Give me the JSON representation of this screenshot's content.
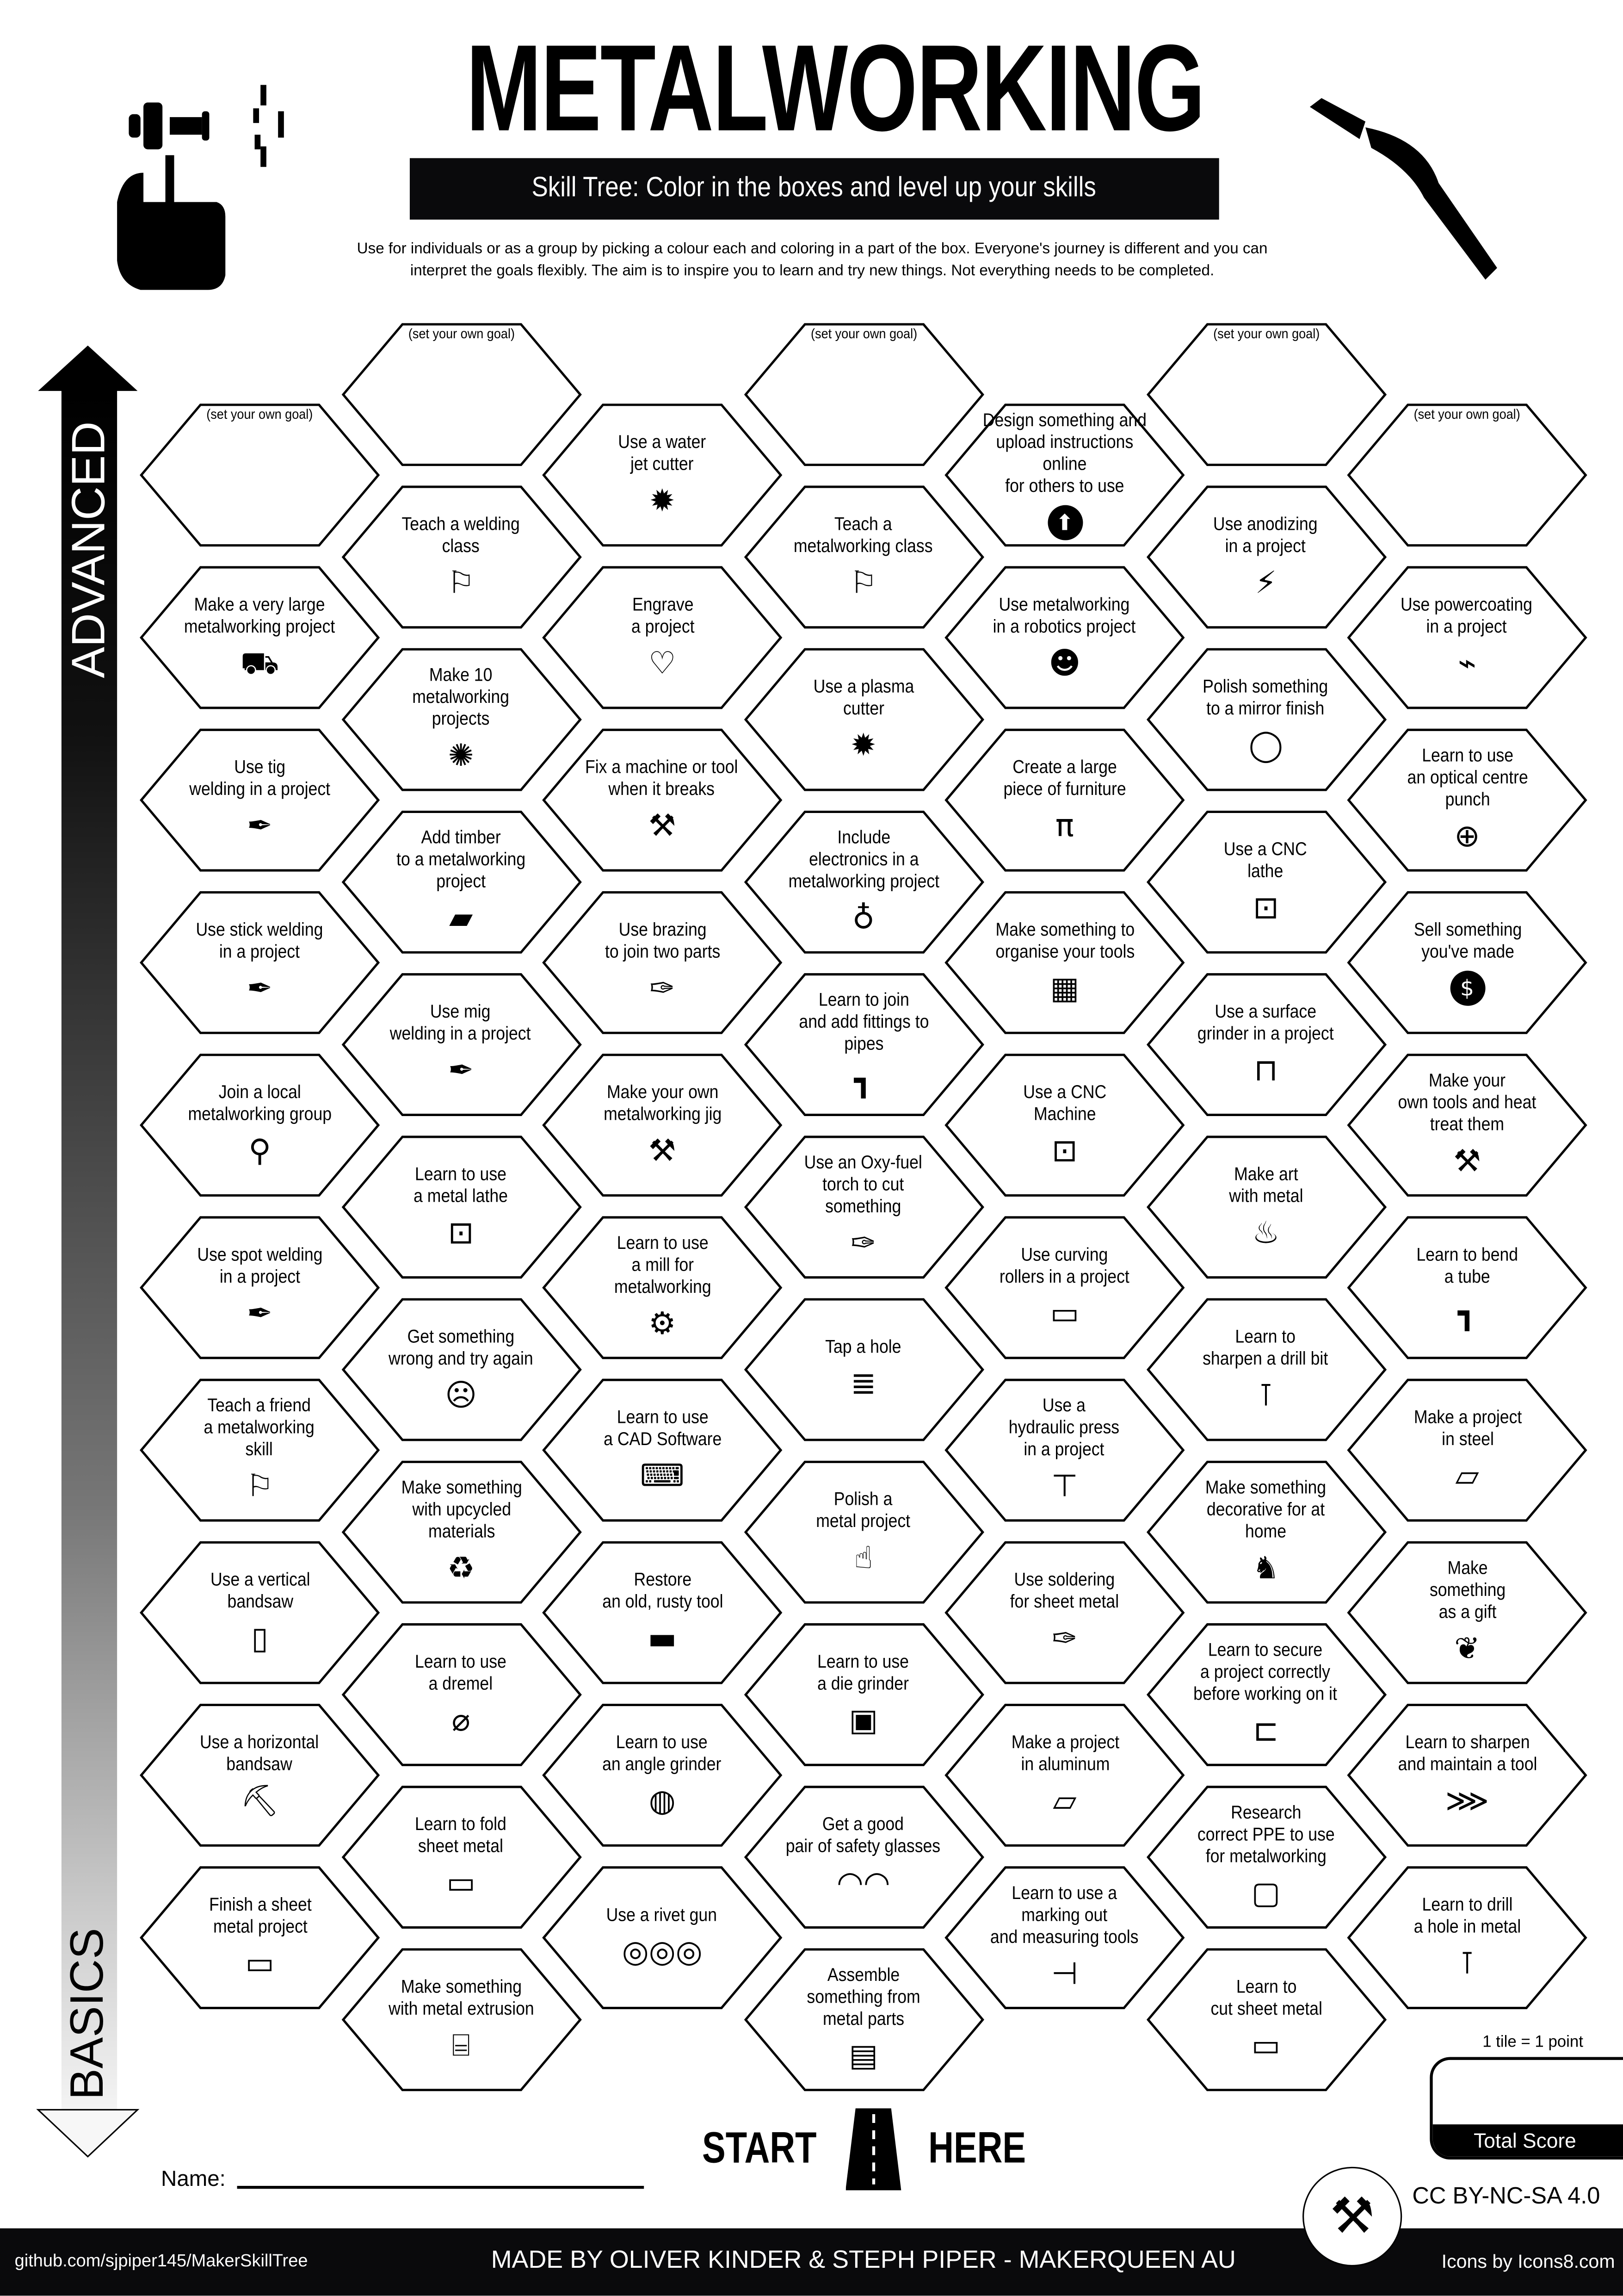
{
  "header": {
    "title": "METALWORKING",
    "subtitle": "Skill Tree:  Color in the boxes and level up your skills",
    "description_line1": "Use for individuals or as a group by picking a colour each and coloring in a part of the box.  Everyone's journey is different and you can",
    "description_line2": "interpret the goals flexibly.  The aim is to inspire you to learn and try new things. Not everything needs to be completed.",
    "left_icon": "torch-in-hand-icon",
    "right_icon": "welding-gun-icon"
  },
  "axis": {
    "top_label": "ADVANCED",
    "bottom_label": "BASICS"
  },
  "columns": [
    [
      {
        "label": "(set your own goal)",
        "goal": true
      },
      {
        "label": "Make a very large\nmetalworking project",
        "icon": "person-carrying-box"
      },
      {
        "label": "Use tig\nwelding in a project",
        "icon": "welding-torch"
      },
      {
        "label": "Use stick welding\nin a project",
        "icon": "welding-torch"
      },
      {
        "label": "Join a local\nmetalworking group",
        "icon": "map-pin"
      },
      {
        "label": "Use spot welding\nin a project",
        "icon": "welding-torch"
      },
      {
        "label": "Teach a friend\na metalworking\nskill",
        "icon": "teacher"
      },
      {
        "label": "Use a vertical\nbandsaw",
        "icon": "vertical-bandsaw"
      },
      {
        "label": "Use a horizontal\nbandsaw",
        "icon": "horizontal-bandsaw"
      },
      {
        "label": "Finish a sheet\nmetal project",
        "icon": "sheet-metal"
      }
    ],
    [
      {
        "label": "(set your own goal)",
        "goal": true
      },
      {
        "label": "Teach a welding\nclass",
        "icon": "teacher"
      },
      {
        "label": "Make 10\nmetalworking\nprojects",
        "icon": "party-popper"
      },
      {
        "label": "Add timber\nto a metalworking\nproject",
        "icon": "timber"
      },
      {
        "label": "Use mig\nwelding in a project",
        "icon": "welding-torch"
      },
      {
        "label": "Learn to use\na metal lathe",
        "icon": "lathe"
      },
      {
        "label": "Get something\nwrong and try again",
        "icon": "facepalm"
      },
      {
        "label": "Make something\nwith upcycled materials",
        "icon": "recycle"
      },
      {
        "label": "Learn to use\na dremel",
        "icon": "dremel"
      },
      {
        "label": "Learn to fold\nsheet metal",
        "icon": "sheet-metal"
      },
      {
        "label": "Make something\nwith metal extrusion",
        "icon": "extrusion"
      }
    ],
    [
      {
        "label": "Use a water\njet cutter",
        "icon": "laser-burst"
      },
      {
        "label": "Engrave\na project",
        "icon": "heart-engrave"
      },
      {
        "label": "Fix a machine or tool\nwhen it breaks",
        "icon": "tools-crossed"
      },
      {
        "label": "Use brazing\nto join two parts",
        "icon": "torch"
      },
      {
        "label": "Make your own\nmetalworking jig",
        "icon": "tools-crossed"
      },
      {
        "label": "Learn to use\na mill for\nmetalworking",
        "icon": "mill"
      },
      {
        "label": "Learn to use\na CAD Software",
        "icon": "laptop-cad"
      },
      {
        "label": "Restore\nan old, rusty tool",
        "icon": "file-tool"
      },
      {
        "label": "Learn to use\nan angle grinder",
        "icon": "angle-grinder"
      },
      {
        "label": "Use a rivet gun",
        "icon": "rivets"
      }
    ],
    [
      {
        "label": "(set your own goal)",
        "goal": true
      },
      {
        "label": "Teach a\nmetalworking class",
        "icon": "teacher"
      },
      {
        "label": "Use a plasma\ncutter",
        "icon": "laser-burst"
      },
      {
        "label": "Include\nelectronics in a\nmetalworking project",
        "icon": "led"
      },
      {
        "label": "Learn to join\nand add fittings to\npipes",
        "icon": "pipe"
      },
      {
        "label": "Use an Oxy-fuel\ntorch to cut\nsomething",
        "icon": "torch"
      },
      {
        "label": "Tap a hole",
        "icon": "tap"
      },
      {
        "label": "Polish a\nmetal project",
        "icon": "polisher"
      },
      {
        "label": "Learn to use\na die grinder",
        "icon": "die-grinder"
      },
      {
        "label": "Get a good\npair of safety glasses",
        "icon": "safety-glasses"
      },
      {
        "label": "Assemble\nsomething from\nmetal parts",
        "icon": "toolbox"
      }
    ],
    [
      {
        "label": "Design something and\nupload instructions online\nfor others to use",
        "icon": "upload"
      },
      {
        "label": "Use metalworking\nin a robotics project",
        "icon": "robot"
      },
      {
        "label": "Create a large\npiece of furniture",
        "icon": "table"
      },
      {
        "label": "Make something to\norganise your tools",
        "icon": "pegboard"
      },
      {
        "label": "Use a CNC\nMachine",
        "icon": "cnc-machine"
      },
      {
        "label": "Use curving\nrollers in a project",
        "icon": "sheet-metal"
      },
      {
        "label": "Use a\nhydraulic press\nin a project",
        "icon": "press"
      },
      {
        "label": "Use soldering\nfor sheet metal",
        "icon": "torch"
      },
      {
        "label": "Make a project\nin aluminum",
        "icon": "metal-ingot"
      },
      {
        "label": "Learn to use a\nmarking out\nand measuring tools",
        "icon": "caliper"
      }
    ],
    [
      {
        "label": "(set your own goal)",
        "goal": true
      },
      {
        "label": "Use anodizing\nin a project",
        "icon": "lightning"
      },
      {
        "label": "Polish something\nto a mirror finish",
        "icon": "mirror"
      },
      {
        "label": "Use a CNC\nlathe",
        "icon": "lathe"
      },
      {
        "label": "Use a surface\ngrinder in a project",
        "icon": "surface-grinder"
      },
      {
        "label": "Make art\nwith metal",
        "icon": "sculpture"
      },
      {
        "label": "Learn to\nsharpen a drill bit",
        "icon": "drill-press"
      },
      {
        "label": "Make something\ndecorative for at\nhome",
        "icon": "decorative"
      },
      {
        "label": "Learn to secure\na project correctly\nbefore working on it",
        "icon": "clamp"
      },
      {
        "label": "Research\ncorrect PPE to use\nfor metalworking",
        "icon": "welding-mask"
      },
      {
        "label": "Learn to\ncut sheet metal",
        "icon": "sheet-metal"
      }
    ],
    [
      {
        "label": "(set your own goal)",
        "goal": true
      },
      {
        "label": "Use powercoating\nin a project",
        "icon": "spray-gun"
      },
      {
        "label": "Learn to use\nan optical centre\npunch",
        "icon": "crosshair"
      },
      {
        "label": "Sell something\nyou've made",
        "icon": "dollar-coin"
      },
      {
        "label": "Make your\nown tools and heat\ntreat them",
        "icon": "tools-crossed"
      },
      {
        "label": "Learn to bend\na tube",
        "icon": "pipe"
      },
      {
        "label": "Make a project\nin steel",
        "icon": "metal-ingot"
      },
      {
        "label": "Make\nsomething\nas a gift",
        "icon": "gift-bow"
      },
      {
        "label": "Learn to sharpen\nand maintain a tool",
        "icon": "saw-blade"
      },
      {
        "label": "Learn to drill\na hole in metal",
        "icon": "drill-press"
      }
    ]
  ],
  "start": {
    "left": "START",
    "right": "HERE",
    "icon": "road-icon"
  },
  "name_label": "Name:",
  "score": {
    "note": "1 tile = 1 point",
    "label": "Total Score"
  },
  "license": "CC BY-NC-SA 4.0",
  "footer": {
    "github": "github.com/sjpiper145/MakerSkillTree",
    "credits": "MADE BY OLIVER KINDER & STEPH PIPER  -  MAKERQUEEN AU",
    "icons_credit": "Icons by Icons8.com"
  },
  "colors": {
    "ink": "#000000",
    "band": "#0a0a0c",
    "paper": "#ffffff"
  }
}
